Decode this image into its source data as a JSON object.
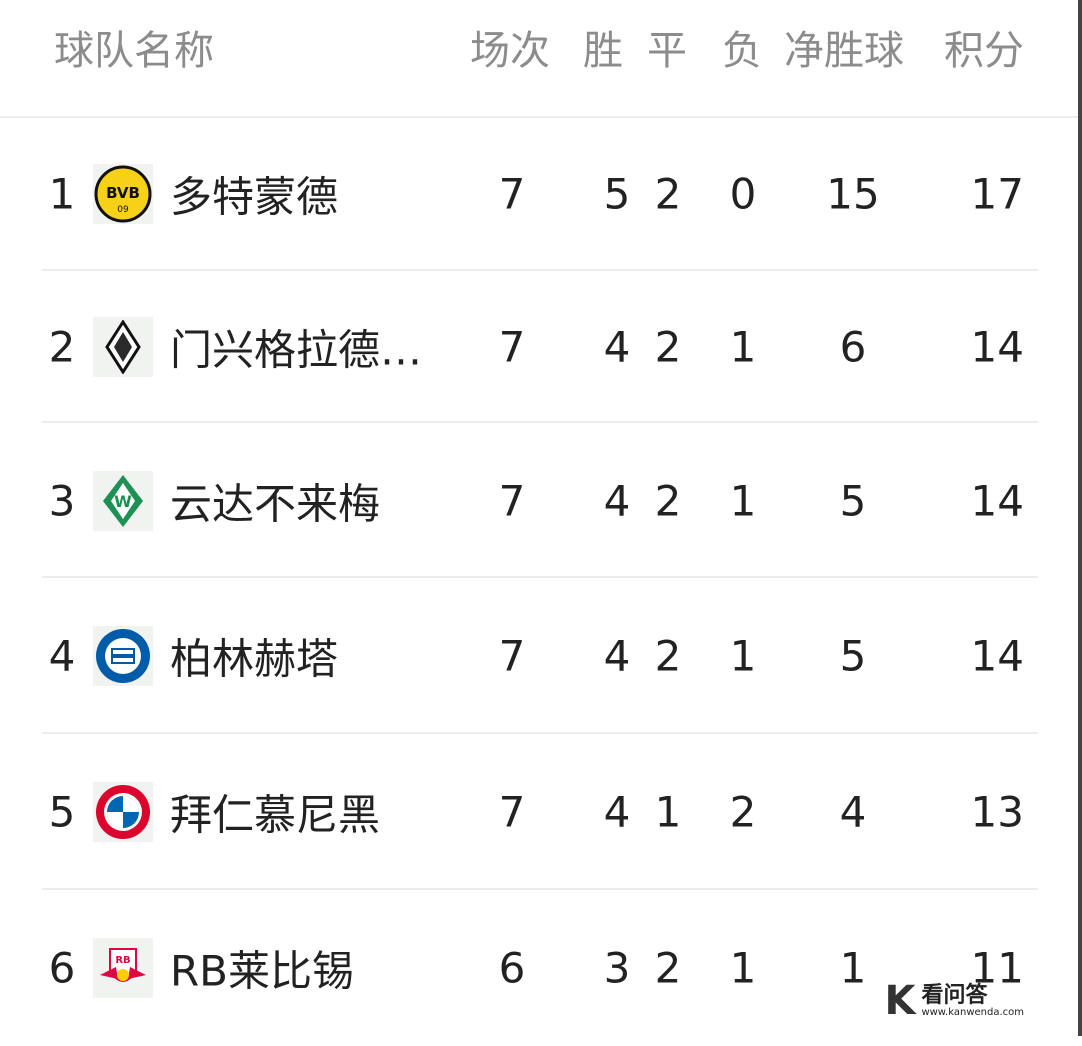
{
  "header": {
    "team": "球队名称",
    "played": "场次",
    "won": "胜",
    "drawn": "平",
    "lost": "负",
    "gd": "净胜球",
    "points": "积分"
  },
  "rows": [
    {
      "rank": "1",
      "team": "多特蒙德",
      "logo": "bvb-crest",
      "played": "7",
      "won": "5",
      "drawn": "2",
      "lost": "0",
      "gd": "15",
      "points": "17"
    },
    {
      "rank": "2",
      "team": "门兴格拉德…",
      "logo": "gladbach-crest",
      "played": "7",
      "won": "4",
      "drawn": "2",
      "lost": "1",
      "gd": "6",
      "points": "14"
    },
    {
      "rank": "3",
      "team": "云达不来梅",
      "logo": "werder-crest",
      "played": "7",
      "won": "4",
      "drawn": "2",
      "lost": "1",
      "gd": "5",
      "points": "14"
    },
    {
      "rank": "4",
      "team": "柏林赫塔",
      "logo": "hertha-crest",
      "played": "7",
      "won": "4",
      "drawn": "2",
      "lost": "1",
      "gd": "5",
      "points": "14"
    },
    {
      "rank": "5",
      "team": "拜仁慕尼黑",
      "logo": "bayern-crest",
      "played": "7",
      "won": "4",
      "drawn": "1",
      "lost": "2",
      "gd": "4",
      "points": "13"
    },
    {
      "rank": "6",
      "team": "RB莱比锡",
      "logo": "leipzig-crest",
      "played": "6",
      "won": "3",
      "drawn": "2",
      "lost": "1",
      "gd": "1",
      "points": "11"
    }
  ],
  "watermark": {
    "logo": "K",
    "name": "看问答",
    "url": "www.kanwenda.com"
  }
}
